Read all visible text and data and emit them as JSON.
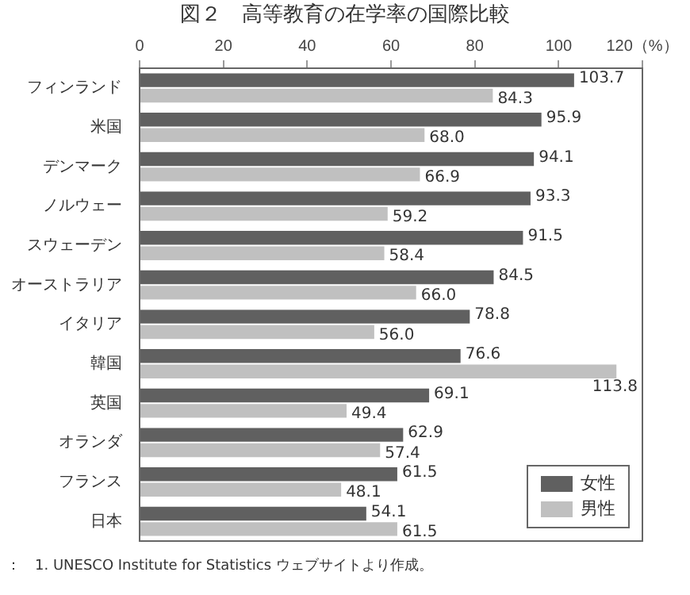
{
  "chart_data": {
    "type": "bar",
    "orientation": "horizontal",
    "title": "図２　高等教育の在学率の国際比較",
    "categories": [
      "フィンランド",
      "米国",
      "デンマーク",
      "ノルウェー",
      "スウェーデン",
      "オーストラリア",
      "イタリア",
      "韓国",
      "英国",
      "オランダ",
      "フランス",
      "日本"
    ],
    "series": [
      {
        "name": "女性",
        "color": "#606060",
        "values": [
          103.7,
          95.9,
          94.1,
          93.3,
          91.5,
          84.5,
          78.8,
          76.6,
          69.1,
          62.9,
          61.5,
          54.1
        ],
        "value_labels": [
          "103.7",
          "95.9",
          "94.1",
          "93.3",
          "91.5",
          "84.5",
          "78.8",
          "76.6",
          "69.1",
          "62.9",
          "61.5",
          "54.1"
        ]
      },
      {
        "name": "男性",
        "color": "#c0c0c0",
        "values": [
          84.3,
          68.0,
          66.9,
          59.2,
          58.4,
          66.0,
          56.0,
          113.8,
          49.4,
          57.4,
          48.1,
          61.5
        ],
        "value_labels": [
          "84.3",
          "68.0",
          "66.9",
          "59.2",
          "58.4",
          "66.0",
          "56.0",
          "113.8",
          "49.4",
          "57.4",
          "48.1",
          "61.5"
        ]
      }
    ],
    "xlim": [
      0,
      120
    ],
    "xticks": [
      0,
      20,
      40,
      60,
      80,
      100,
      {
        "value": 120,
        "label": "120（%）"
      }
    ],
    "grid": false,
    "legend": "bottom right",
    "annotations": [
      "：　1. UNESCO Institute for Statistics ウェブサイトより作成。"
    ]
  }
}
